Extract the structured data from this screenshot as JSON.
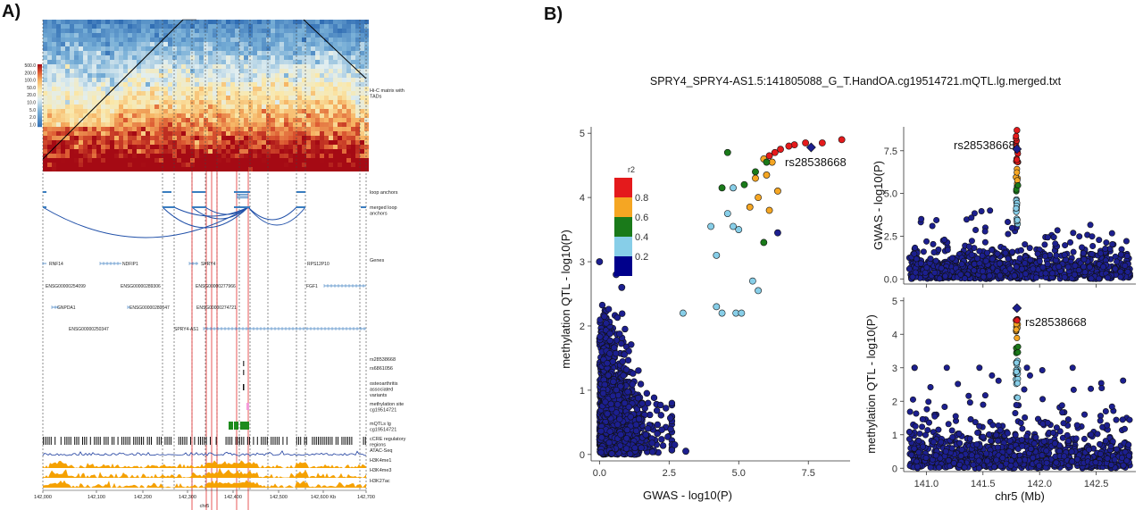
{
  "panel_a_label": "A)",
  "panel_b_label": "B)",
  "panel_a": {
    "colorbar_ticks": [
      "500.0",
      "200.0",
      "100.0",
      "50.0",
      "20.0",
      "10.0",
      "5.0",
      "2.0",
      "1.0"
    ],
    "track_labels": [
      [
        "Hi-C matrix with",
        "TADs"
      ],
      [
        "loop anchors"
      ],
      [
        "merged loop",
        "anchors"
      ],
      [
        "Genes"
      ],
      [
        "rs28538668"
      ],
      [
        "rs6861056"
      ],
      [
        "osteoarthritis",
        "associated",
        "variants"
      ],
      [
        "methylation site",
        "cg19514721"
      ],
      [
        "mQTLs lg",
        "cg19514721"
      ],
      [
        "cCRE regulatory",
        "regions"
      ],
      [
        "ATAC-Seq"
      ],
      [
        "H3K4me1"
      ],
      [
        "H3K4me3"
      ],
      [
        "H3K27ac"
      ]
    ],
    "genes": [
      "RNF14",
      "NDFIP1",
      "SPRY4",
      "RPS12P10",
      "ENSG00000254099",
      "ENSG00000289306",
      "ENSG00000277966",
      "FGF1",
      "GNPDA1",
      "ENSG00000280047",
      "ENSG00000274721",
      "ENSG00000250347",
      "SPRY4-AS1"
    ],
    "x_ticks": [
      "142,000",
      "142,100",
      "142,200",
      "142,300",
      "142,400",
      "142,500",
      "142,600 Kb",
      "142,700"
    ],
    "x_label": "chr5"
  },
  "chart_data": [
    {
      "type": "scatter",
      "title": "SPRY4_SPRY4-AS1.5:141805088_G_T.HandOA.cg19514721.mQTL.lg.merged.txt",
      "xlabel": "GWAS - log10(P)",
      "ylabel": "methylation QTL - log10(P)",
      "xlim": [
        -0.3,
        9.0
      ],
      "ylim": [
        -0.1,
        5.1
      ],
      "x_ticks": [
        0.0,
        2.5,
        5.0,
        7.5
      ],
      "y_ticks": [
        0,
        1,
        2,
        3,
        4,
        5
      ],
      "legend": {
        "title": "r2",
        "ticks": [
          "0.8",
          "0.6",
          "0.4",
          "0.2"
        ],
        "colors": [
          "#e41a1c",
          "#f5a623",
          "#1a7a1a",
          "#87cee8",
          "#00008b"
        ],
        "position": "top-left"
      },
      "annotation": {
        "text": "rs28538668",
        "x": 7.6,
        "y": 4.78
      },
      "lead_point": {
        "x": 7.6,
        "y": 4.78
      },
      "highlighted_points": [
        {
          "x": 8.7,
          "y": 4.9,
          "r2": "red"
        },
        {
          "x": 8.0,
          "y": 4.85,
          "r2": "red"
        },
        {
          "x": 7.4,
          "y": 4.85,
          "r2": "red"
        },
        {
          "x": 7.0,
          "y": 4.82,
          "r2": "red"
        },
        {
          "x": 6.8,
          "y": 4.8,
          "r2": "red"
        },
        {
          "x": 6.5,
          "y": 4.75,
          "r2": "red"
        },
        {
          "x": 6.3,
          "y": 4.7,
          "r2": "red"
        },
        {
          "x": 6.1,
          "y": 4.65,
          "r2": "red"
        },
        {
          "x": 5.9,
          "y": 4.6,
          "r2": "orange"
        },
        {
          "x": 6.2,
          "y": 4.55,
          "r2": "orange"
        },
        {
          "x": 6.0,
          "y": 4.35,
          "r2": "orange"
        },
        {
          "x": 5.6,
          "y": 4.3,
          "r2": "orange"
        },
        {
          "x": 6.4,
          "y": 4.1,
          "r2": "orange"
        },
        {
          "x": 5.7,
          "y": 4.0,
          "r2": "orange"
        },
        {
          "x": 5.4,
          "y": 3.85,
          "r2": "orange"
        },
        {
          "x": 6.1,
          "y": 3.8,
          "r2": "orange"
        },
        {
          "x": 4.6,
          "y": 4.7,
          "r2": "green"
        },
        {
          "x": 6.0,
          "y": 4.55,
          "r2": "green"
        },
        {
          "x": 5.6,
          "y": 4.4,
          "r2": "green"
        },
        {
          "x": 4.4,
          "y": 4.15,
          "r2": "green"
        },
        {
          "x": 5.2,
          "y": 4.2,
          "r2": "green"
        },
        {
          "x": 5.9,
          "y": 3.3,
          "r2": "green"
        },
        {
          "x": 4.8,
          "y": 4.15,
          "r2": "lightblue"
        },
        {
          "x": 4.6,
          "y": 3.75,
          "r2": "lightblue"
        },
        {
          "x": 4.0,
          "y": 3.55,
          "r2": "lightblue"
        },
        {
          "x": 4.8,
          "y": 3.55,
          "r2": "lightblue"
        },
        {
          "x": 5.0,
          "y": 3.5,
          "r2": "lightblue"
        },
        {
          "x": 4.2,
          "y": 3.1,
          "r2": "lightblue"
        },
        {
          "x": 5.5,
          "y": 2.7,
          "r2": "lightblue"
        },
        {
          "x": 5.7,
          "y": 2.55,
          "r2": "lightblue"
        },
        {
          "x": 4.2,
          "y": 2.3,
          "r2": "lightblue"
        },
        {
          "x": 4.9,
          "y": 2.2,
          "r2": "lightblue"
        },
        {
          "x": 5.1,
          "y": 2.2,
          "r2": "lightblue"
        },
        {
          "x": 3.0,
          "y": 2.2,
          "r2": "lightblue"
        },
        {
          "x": 4.4,
          "y": 2.2,
          "r2": "lightblue"
        },
        {
          "x": 6.4,
          "y": 3.45,
          "r2": "darkblue"
        },
        {
          "x": 0.0,
          "y": 3.0,
          "r2": "darkblue"
        },
        {
          "x": 0.6,
          "y": 2.8,
          "r2": "darkblue"
        },
        {
          "x": 0.8,
          "y": 2.6,
          "r2": "darkblue"
        },
        {
          "x": 2.7,
          "y": 0.15,
          "r2": "darkblue"
        },
        {
          "x": 3.1,
          "y": 0.05,
          "r2": "darkblue"
        }
      ]
    },
    {
      "type": "scatter",
      "title": "",
      "xlabel": "",
      "ylabel": "GWAS - log10(P)",
      "xlim": [
        140.8,
        142.85
      ],
      "ylim": [
        -0.3,
        8.9
      ],
      "y_ticks": [
        0.0,
        2.5,
        5.0,
        7.5
      ],
      "annotation": {
        "text": "rs28538668",
        "x": 141.8,
        "y": 7.6
      },
      "lead_point": {
        "x": 141.8,
        "y": 7.6
      },
      "peak_region": {
        "x_center": 141.8,
        "y_max": 8.7
      }
    },
    {
      "type": "scatter",
      "title": "",
      "xlabel": "chr5 (Mb)",
      "ylabel": "methylation QTL - log10(P)",
      "xlim": [
        140.8,
        142.85
      ],
      "ylim": [
        -0.1,
        5.1
      ],
      "x_ticks": [
        141.0,
        141.5,
        142.0,
        142.5
      ],
      "y_ticks": [
        0,
        1,
        2,
        3,
        4,
        5
      ],
      "annotation": {
        "text": "rs28538668",
        "x": 141.8,
        "y": 4.78
      },
      "lead_point": {
        "x": 141.8,
        "y": 4.78
      },
      "peak_region": {
        "x_center": 141.8,
        "y_max": 4.8
      }
    }
  ]
}
